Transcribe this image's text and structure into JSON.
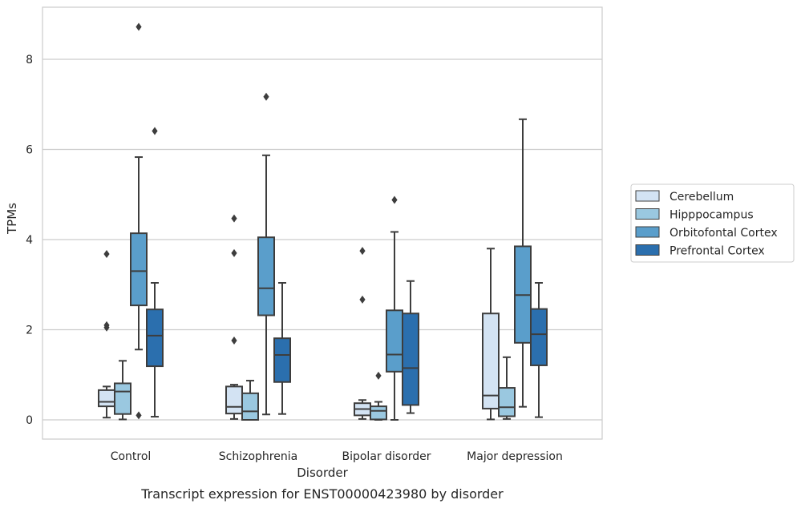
{
  "chart_data": {
    "type": "boxplot",
    "caption": "Transcript expression for ENST00000423980 by disorder",
    "xlabel": "Disorder",
    "ylabel": "TPMs",
    "ylim": [
      -0.42,
      9.2
    ],
    "yticks": [
      0,
      2,
      4,
      6,
      8
    ],
    "grid": "horizontal",
    "legend_position": "right",
    "categories": [
      "Control",
      "Schizophrenia",
      "Bipolar disorder",
      "Major depression"
    ],
    "series": [
      {
        "name": "Cerebellum",
        "color": "#d3e3f3",
        "boxes": [
          {
            "whislo": 0.05,
            "q1": 0.3,
            "med": 0.4,
            "q3": 0.66,
            "whishi": 0.74,
            "fliers": [
              3.68,
              2.05,
              2.1
            ]
          },
          {
            "whislo": 0.02,
            "q1": 0.14,
            "med": 0.29,
            "q3": 0.74,
            "whishi": 0.78,
            "fliers": [
              4.47,
              3.7,
              1.76
            ]
          },
          {
            "whislo": 0.02,
            "q1": 0.1,
            "med": 0.24,
            "q3": 0.37,
            "whishi": 0.44,
            "fliers": [
              3.75,
              2.67
            ]
          },
          {
            "whislo": 0.01,
            "q1": 0.25,
            "med": 0.54,
            "q3": 2.36,
            "whishi": 3.8,
            "fliers": []
          }
        ]
      },
      {
        "name": "Hipppocampus",
        "color": "#9ac8e0",
        "boxes": [
          {
            "whislo": 0.01,
            "q1": 0.13,
            "med": 0.63,
            "q3": 0.81,
            "whishi": 1.31,
            "fliers": []
          },
          {
            "whislo": 0.0,
            "q1": 0.0,
            "med": 0.19,
            "q3": 0.59,
            "whishi": 0.87,
            "fliers": []
          },
          {
            "whislo": 0.0,
            "q1": 0.01,
            "med": 0.2,
            "q3": 0.3,
            "whishi": 0.4,
            "fliers": [
              0.98
            ]
          },
          {
            "whislo": 0.02,
            "q1": 0.08,
            "med": 0.28,
            "q3": 0.71,
            "whishi": 1.39,
            "fliers": []
          }
        ]
      },
      {
        "name": "Orbitofontal Cortex",
        "color": "#5a9ecb",
        "boxes": [
          {
            "whislo": 1.56,
            "q1": 2.54,
            "med": 3.3,
            "q3": 4.14,
            "whishi": 5.83,
            "fliers": [
              8.72,
              0.1
            ]
          },
          {
            "whislo": 0.12,
            "q1": 2.32,
            "med": 2.92,
            "q3": 4.05,
            "whishi": 5.87,
            "fliers": [
              7.17
            ]
          },
          {
            "whislo": 0.0,
            "q1": 1.07,
            "med": 1.45,
            "q3": 2.43,
            "whishi": 4.17,
            "fliers": [
              4.88
            ]
          },
          {
            "whislo": 0.29,
            "q1": 1.71,
            "med": 2.77,
            "q3": 3.85,
            "whishi": 6.67,
            "fliers": []
          }
        ]
      },
      {
        "name": "Prefrontal Cortex",
        "color": "#2b6fae",
        "boxes": [
          {
            "whislo": 0.07,
            "q1": 1.19,
            "med": 1.87,
            "q3": 2.45,
            "whishi": 3.04,
            "fliers": [
              6.41
            ]
          },
          {
            "whislo": 0.13,
            "q1": 0.84,
            "med": 1.44,
            "q3": 1.81,
            "whishi": 3.04,
            "fliers": []
          },
          {
            "whislo": 0.15,
            "q1": 0.33,
            "med": 1.15,
            "q3": 2.36,
            "whishi": 3.08,
            "fliers": []
          },
          {
            "whislo": 0.06,
            "q1": 1.21,
            "med": 1.9,
            "q3": 2.46,
            "whishi": 3.04,
            "fliers": []
          }
        ]
      }
    ]
  }
}
